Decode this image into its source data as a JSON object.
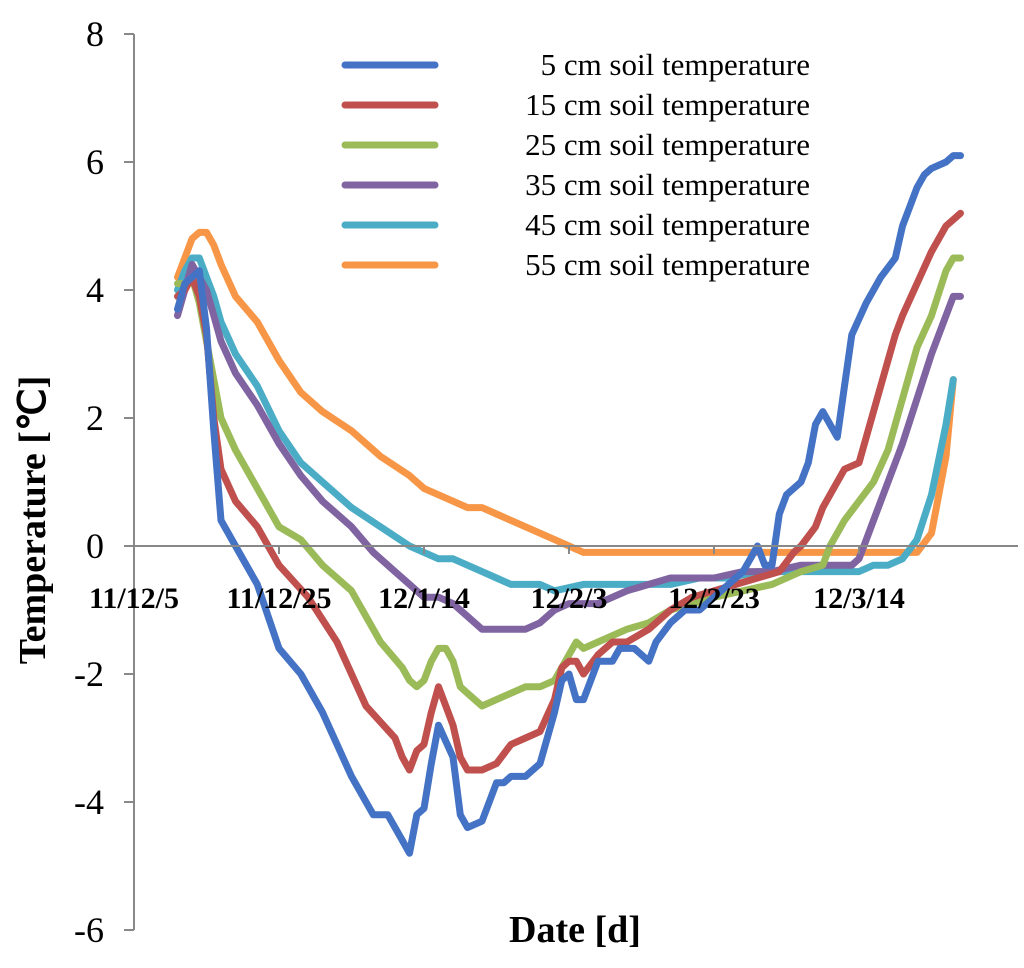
{
  "chart_data": {
    "type": "line",
    "title": "",
    "xlabel": "Date [d]",
    "ylabel": "Temperature [℃]",
    "ylim": [
      -6,
      8
    ],
    "yticks": [
      -6,
      -4,
      -2,
      0,
      2,
      4,
      6,
      8
    ],
    "ytick_labels": [
      "-6",
      "-4",
      "-2",
      "0",
      "2",
      "4",
      "6",
      "8"
    ],
    "x_unit": "days since 2011-12-05",
    "xlim": [
      0,
      120
    ],
    "xticks": [
      0,
      20,
      40,
      60,
      80,
      100
    ],
    "xtick_labels": [
      "11/12/5",
      "11/12/25",
      "12/1/14",
      "12/2/3",
      "12/2/23",
      "12/3/14"
    ],
    "legend_position": "top-right",
    "grid": false,
    "series": [
      {
        "name": "5 cm soil temperature",
        "color": "#4472C4",
        "x": [
          6,
          7,
          9,
          10,
          11,
          12,
          14,
          17,
          20,
          23,
          26,
          30,
          33,
          35,
          37,
          38,
          39,
          40,
          41,
          42,
          44,
          45,
          46,
          48,
          50,
          51,
          52,
          54,
          56,
          58,
          59,
          60,
          61,
          62,
          64,
          66,
          67,
          69,
          71,
          72,
          74,
          76,
          78,
          80,
          82,
          84,
          85,
          86,
          87,
          88,
          89,
          90,
          92,
          93,
          94,
          95,
          97,
          98,
          99,
          101,
          103,
          105,
          106,
          107,
          108,
          109,
          110,
          112,
          113,
          114
        ],
        "y": [
          3.7,
          4.1,
          4.3,
          3.4,
          1.8,
          0.4,
          0.0,
          -0.6,
          -1.6,
          -2.0,
          -2.6,
          -3.6,
          -4.2,
          -4.2,
          -4.6,
          -4.8,
          -4.2,
          -4.1,
          -3.4,
          -2.8,
          -3.3,
          -4.2,
          -4.4,
          -4.3,
          -3.7,
          -3.7,
          -3.6,
          -3.6,
          -3.4,
          -2.6,
          -2.1,
          -2.0,
          -2.4,
          -2.4,
          -1.8,
          -1.8,
          -1.6,
          -1.6,
          -1.8,
          -1.5,
          -1.2,
          -1.0,
          -1.0,
          -0.8,
          -0.6,
          -0.4,
          -0.2,
          0.0,
          -0.3,
          -0.3,
          0.5,
          0.8,
          1.0,
          1.3,
          1.9,
          2.1,
          1.7,
          2.5,
          3.3,
          3.8,
          4.2,
          4.5,
          5.0,
          5.3,
          5.6,
          5.8,
          5.9,
          6.0,
          6.1,
          6.1
        ]
      },
      {
        "name": "15 cm soil temperature",
        "color": "#C0504D",
        "x": [
          6,
          7,
          8,
          9,
          10,
          11,
          12,
          14,
          17,
          20,
          24,
          28,
          32,
          36,
          37,
          38,
          39,
          40,
          41,
          42,
          43,
          44,
          45,
          46,
          48,
          50,
          52,
          54,
          56,
          58,
          59,
          60,
          61,
          62,
          64,
          66,
          68,
          71,
          74,
          77,
          80,
          83,
          86,
          89,
          91,
          92,
          94,
          95,
          96,
          98,
          100,
          102,
          104,
          105,
          106,
          108,
          110,
          112,
          113,
          114
        ],
        "y": [
          3.9,
          4.0,
          4.2,
          3.9,
          3.3,
          2.0,
          1.2,
          0.7,
          0.3,
          -0.3,
          -0.8,
          -1.5,
          -2.5,
          -3.0,
          -3.3,
          -3.5,
          -3.2,
          -3.1,
          -2.6,
          -2.2,
          -2.5,
          -2.8,
          -3.3,
          -3.5,
          -3.5,
          -3.4,
          -3.1,
          -3.0,
          -2.9,
          -2.4,
          -1.9,
          -1.8,
          -1.8,
          -2.0,
          -1.7,
          -1.5,
          -1.5,
          -1.3,
          -1.0,
          -0.8,
          -0.7,
          -0.6,
          -0.5,
          -0.4,
          -0.1,
          0.0,
          0.3,
          0.6,
          0.8,
          1.2,
          1.3,
          2.1,
          2.9,
          3.3,
          3.6,
          4.1,
          4.6,
          5.0,
          5.1,
          5.2
        ]
      },
      {
        "name": "25 cm soil temperature",
        "color": "#9BBB59",
        "x": [
          6,
          7,
          8,
          9,
          10,
          11,
          12,
          14,
          17,
          20,
          23,
          26,
          30,
          34,
          37,
          38,
          39,
          40,
          41,
          42,
          43,
          44,
          45,
          46,
          48,
          50,
          52,
          54,
          56,
          58,
          59,
          60,
          61,
          62,
          64,
          66,
          68,
          71,
          74,
          77,
          80,
          84,
          88,
          92,
          95,
          96,
          98,
          100,
          102,
          104,
          106,
          108,
          110,
          112,
          113,
          114
        ],
        "y": [
          4.1,
          4.1,
          4.2,
          3.8,
          3.2,
          2.6,
          2.0,
          1.5,
          0.9,
          0.3,
          0.1,
          -0.3,
          -0.7,
          -1.5,
          -1.9,
          -2.1,
          -2.2,
          -2.1,
          -1.8,
          -1.6,
          -1.6,
          -1.8,
          -2.2,
          -2.3,
          -2.5,
          -2.4,
          -2.3,
          -2.2,
          -2.2,
          -2.1,
          -1.9,
          -1.7,
          -1.5,
          -1.6,
          -1.5,
          -1.4,
          -1.3,
          -1.2,
          -1.0,
          -0.9,
          -0.8,
          -0.7,
          -0.6,
          -0.4,
          -0.3,
          0.0,
          0.4,
          0.7,
          1.0,
          1.5,
          2.3,
          3.1,
          3.6,
          4.3,
          4.5,
          4.5
        ]
      },
      {
        "name": "35 cm soil temperature",
        "color": "#8064A2",
        "x": [
          6,
          7,
          8,
          9,
          10,
          11,
          12,
          14,
          17,
          20,
          23,
          26,
          30,
          33,
          36,
          38,
          40,
          42,
          44,
          46,
          48,
          50,
          52,
          54,
          56,
          58,
          60,
          62,
          64,
          66,
          68,
          71,
          74,
          77,
          80,
          84,
          88,
          92,
          96,
          99,
          100,
          101,
          102,
          104,
          106,
          108,
          110,
          112,
          113,
          114
        ],
        "y": [
          3.6,
          4.0,
          4.4,
          4.2,
          4.0,
          3.6,
          3.2,
          2.7,
          2.2,
          1.6,
          1.1,
          0.7,
          0.3,
          -0.1,
          -0.4,
          -0.6,
          -0.8,
          -0.8,
          -0.9,
          -1.1,
          -1.3,
          -1.3,
          -1.3,
          -1.3,
          -1.2,
          -1.0,
          -0.9,
          -0.9,
          -0.9,
          -0.8,
          -0.7,
          -0.6,
          -0.5,
          -0.5,
          -0.5,
          -0.4,
          -0.4,
          -0.3,
          -0.3,
          -0.3,
          -0.2,
          0.1,
          0.4,
          1.0,
          1.6,
          2.3,
          3.0,
          3.6,
          3.9,
          3.9
        ]
      },
      {
        "name": "45 cm soil temperature",
        "color": "#4BACC6",
        "x": [
          6,
          7,
          8,
          9,
          10,
          11,
          12,
          14,
          17,
          20,
          23,
          26,
          30,
          34,
          38,
          40,
          42,
          44,
          46,
          48,
          50,
          52,
          54,
          56,
          58,
          62,
          66,
          70,
          74,
          78,
          82,
          86,
          90,
          94,
          98,
          100,
          102,
          104,
          106,
          108,
          110,
          112,
          113
        ],
        "y": [
          4.0,
          4.3,
          4.5,
          4.5,
          4.2,
          3.9,
          3.5,
          3.0,
          2.5,
          1.8,
          1.3,
          1.0,
          0.6,
          0.3,
          0.0,
          -0.1,
          -0.2,
          -0.2,
          -0.3,
          -0.4,
          -0.5,
          -0.6,
          -0.6,
          -0.6,
          -0.7,
          -0.6,
          -0.6,
          -0.6,
          -0.6,
          -0.5,
          -0.5,
          -0.4,
          -0.4,
          -0.4,
          -0.4,
          -0.4,
          -0.3,
          -0.3,
          -0.2,
          0.1,
          0.8,
          1.9,
          2.6
        ]
      },
      {
        "name": "55 cm soil temperature",
        "color": "#F79646",
        "x": [
          6,
          7,
          8,
          9,
          10,
          11,
          12,
          14,
          17,
          20,
          23,
          26,
          30,
          34,
          38,
          40,
          42,
          44,
          46,
          48,
          50,
          52,
          54,
          56,
          58,
          60,
          62,
          66,
          70,
          74,
          78,
          82,
          86,
          90,
          94,
          98,
          102,
          104,
          106,
          108,
          110,
          112,
          113
        ],
        "y": [
          4.2,
          4.5,
          4.8,
          4.9,
          4.9,
          4.7,
          4.4,
          3.9,
          3.5,
          2.9,
          2.4,
          2.1,
          1.8,
          1.4,
          1.1,
          0.9,
          0.8,
          0.7,
          0.6,
          0.6,
          0.5,
          0.4,
          0.3,
          0.2,
          0.1,
          0.0,
          -0.1,
          -0.1,
          -0.1,
          -0.1,
          -0.1,
          -0.1,
          -0.1,
          -0.1,
          -0.1,
          -0.1,
          -0.1,
          -0.1,
          -0.1,
          -0.1,
          0.2,
          1.4,
          2.6
        ]
      }
    ]
  }
}
